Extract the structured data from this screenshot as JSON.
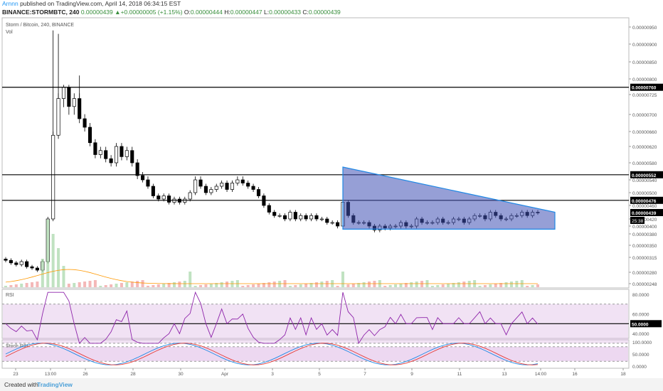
{
  "header": {
    "user": "Arnnn",
    "published": "published on TradingView.com, April 14, 2018 06:34:15 EST",
    "symbol": "BINANCE:STORMBTC, 240",
    "last": "0.00000439",
    "change": "+0.00000005 (+1.15%)",
    "o_label": "O:",
    "o_value": "0.00000444",
    "h_label": "H:",
    "h_value": "0.00000447",
    "l_label": "L:",
    "l_value": "0.00000433",
    "c_label": "C:",
    "c_value": "0.00000439"
  },
  "footer": {
    "created_with": "Created with",
    "brand": "TradingView"
  },
  "chart_data": {
    "type": "candlestick",
    "title": "Storm / Bitcoin, 240, BINANCE",
    "volume_label": "Vol",
    "y_ticks": [
      9.5e-06,
      9e-06,
      8.5e-06,
      8e-06,
      7.25e-06,
      7e-06,
      6.6e-06,
      6.2e-06,
      5.8e-06,
      5.4e-06,
      5e-06,
      4.6e-06,
      4.2e-06,
      4e-06,
      3.8e-06,
      3.5e-06,
      3.15e-06,
      2.8e-06,
      2.48e-06
    ],
    "y_tick_labels": [
      "0.00000950",
      "0.00000900",
      "0.00000850",
      "0.00000800",
      "0.00000725",
      "0.00000700",
      "0.00000660",
      "0.00000620",
      "0.00000580",
      "0.00000540",
      "0.00000500",
      "0.00000460",
      "0.00000420",
      "0.00000400",
      "0.00000380",
      "0.00000350",
      "0.00000315",
      "0.00000280",
      "0.00000248"
    ],
    "x_tick_labels": [
      "23",
      "13:00",
      "26",
      "28",
      "30",
      "Apr",
      "3",
      "5",
      "7",
      "9",
      "11",
      "13",
      "14:00",
      "16",
      "18"
    ],
    "horizontal_lines": [
      {
        "value": 7.6e-06,
        "label": "0.00000760"
      },
      {
        "value": 5.52e-06,
        "label": "0.00000552"
      },
      {
        "value": 4.76e-06,
        "label": "0.00000476"
      }
    ],
    "last_price_label": "0.00000439",
    "countdown_label": "25:38",
    "closes": [
      3.08e-06,
      3.02e-06,
      2.98e-06,
      3.05e-06,
      2.93e-06,
      2.9e-06,
      2.85e-06,
      3.05e-06,
      4.2e-06,
      6.5e-06,
      7.2e-06,
      7.6e-06,
      7.1e-06,
      7.2e-06,
      6.9e-06,
      6.7e-06,
      6.3e-06,
      6e-06,
      6.1e-06,
      5.9e-06,
      5.8e-06,
      6.2e-06,
      5.95e-06,
      6.1e-06,
      5.8e-06,
      5.5e-06,
      5.4e-06,
      5.2e-06,
      4.9e-06,
      4.8e-06,
      4.9e-06,
      4.7e-06,
      4.8e-06,
      4.7e-06,
      4.8e-06,
      5e-06,
      5.4e-06,
      5.2e-06,
      5e-06,
      5.1e-06,
      5.2e-06,
      5.3e-06,
      5.1e-06,
      5.3e-06,
      5.4e-06,
      5.3e-06,
      5.2e-06,
      5.1e-06,
      4.9e-06,
      4.6e-06,
      4.4e-06,
      4.3e-06,
      4.3e-06,
      4.2e-06,
      4.4e-06,
      4.2e-06,
      4.3e-06,
      4.2e-06,
      4.3e-06,
      4.2e-06,
      4.2e-06,
      4.1e-06,
      4.1e-06,
      4e-06,
      4.7e-06,
      4.3e-06,
      4.1e-06,
      4.1e-06,
      4.1e-06,
      4e-06,
      3.9e-06,
      4e-06,
      3.95e-06,
      4e-06,
      4e-06,
      4.1e-06,
      4e-06,
      4e-06,
      4.2e-06,
      4.1e-06,
      4.1e-06,
      4.1e-06,
      4.2e-06,
      4.1e-06,
      4.1e-06,
      4.2e-06,
      4.2e-06,
      4.1e-06,
      4.2e-06,
      4.3e-06,
      4.3e-06,
      4.2e-06,
      4.4e-06,
      4.3e-06,
      4.2e-06,
      4.2e-06,
      4.3e-06,
      4.3e-06,
      4.4e-06,
      4.3e-06,
      4.4e-06,
      4.39e-06
    ],
    "rsi": {
      "label": "RSI",
      "levels": [
        60,
        50,
        40
      ],
      "tick_labels": [
        "80.0000",
        "60.0000",
        "50.0000",
        "40.0000"
      ],
      "highlight_label": "50.0000"
    },
    "stoch_rsi": {
      "label": "Stoch RSI",
      "tick_labels": [
        "100.0000",
        "50.0000",
        "0.0000"
      ]
    }
  }
}
